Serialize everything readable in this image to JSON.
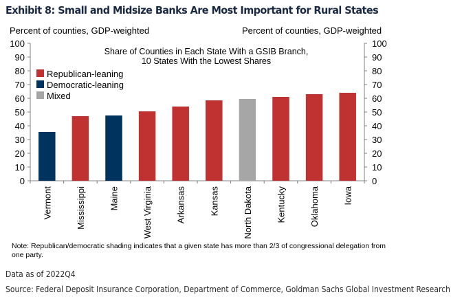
{
  "exhibit": {
    "title": "Exhibit 8: Small and Midsize Banks Are Most Important for Rural States",
    "note": "Note: Republican/democratic  shading indicates that a given state has more than 2/3 of congressional delegation  from one party.",
    "data_as_of": "Data as of 2022Q4",
    "source": "Source: Federal Deposit Insurance Corporation, Department of Commerce, Goldman Sachs Global Investment Research"
  },
  "colors": {
    "Republican-leaning": "#c03232",
    "Democratic-leaning": "#00335e",
    "Mixed": "#a6a6a6",
    "axis": "#808080"
  },
  "chart_data": {
    "type": "bar",
    "title": "Share of Counties in Each State With a GSIB Branch,",
    "subtitle": "10 States With the Lowest Shares",
    "ylabel": "Percent of counties, GDP-weighted",
    "ylabel_right": "Percent of counties, GDP-weighted",
    "xlabel": "",
    "ylim": [
      0,
      100
    ],
    "yticks": [
      0,
      10,
      20,
      30,
      40,
      50,
      60,
      70,
      80,
      90,
      100
    ],
    "grid": false,
    "legend_position": "top-left",
    "legend": [
      "Republican-leaning",
      "Democratic-leaning",
      "Mixed"
    ],
    "categories": [
      "Vermont",
      "Mississippi",
      "Maine",
      "West Virginia",
      "Arkansas",
      "Kansas",
      "North Dakota",
      "Kentucky",
      "Oklahoma",
      "Iowa"
    ],
    "values": [
      35.5,
      47,
      47.5,
      50.5,
      54,
      58.5,
      59.5,
      61,
      63,
      64
    ],
    "groups": [
      "Democratic-leaning",
      "Republican-leaning",
      "Democratic-leaning",
      "Republican-leaning",
      "Republican-leaning",
      "Republican-leaning",
      "Mixed",
      "Republican-leaning",
      "Republican-leaning",
      "Republican-leaning"
    ]
  }
}
